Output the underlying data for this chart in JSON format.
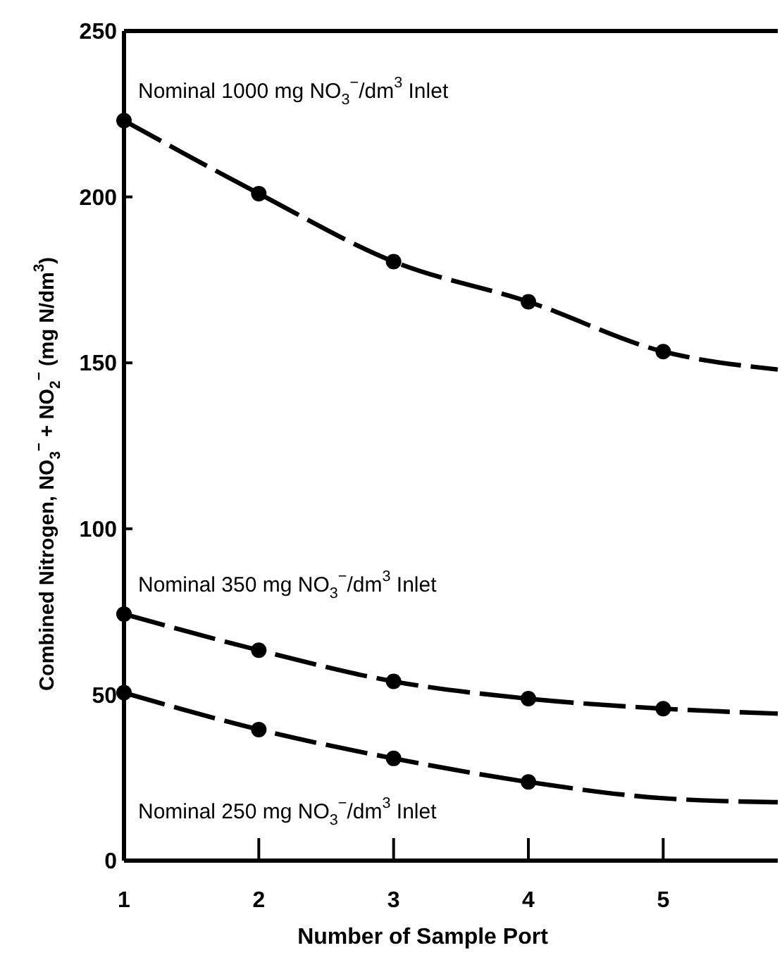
{
  "chart_data": {
    "type": "line",
    "xlabel": "Number of Sample Port",
    "ylabel": "Combined Nitrogen, NO$_{3}$$^{−}$ + NO$_{2}$$^{−}$ (mg N/dm$^{3}$)",
    "xlim": [
      1,
      5.85
    ],
    "xticks": [
      1,
      2,
      3,
      4,
      5
    ],
    "ylim": [
      0,
      250
    ],
    "yticks": [
      0,
      50,
      100,
      150,
      200,
      250
    ],
    "grid": false,
    "series": [
      {
        "name": "Nominal 1000 mg NO$_{3}$$^{−}$/dm$^{3}$ Inlet",
        "type": "line",
        "color": "#000000",
        "marker": "none",
        "line_style": "dashed",
        "x": [
          1,
          2,
          3,
          4,
          5,
          5.85
        ],
        "values": [
          223,
          201,
          180.5,
          168.4,
          153.4,
          148
        ]
      },
      {
        "name": "Nominal 350 mg NO$_{3}$$^{−}$/dm$^{3}$ Inlet",
        "type": "line",
        "color": "#000000",
        "marker": "none",
        "line_style": "dashed",
        "x": [
          1,
          2,
          3,
          4,
          5,
          5.85
        ],
        "values": [
          74.3,
          63.4,
          54,
          48.8,
          45.8,
          44.3
        ]
      },
      {
        "name": "Nominal 250 mg NO$_{3}$$^{−}$/dm$^{3}$ Inlet",
        "type": "line",
        "color": "#000000",
        "marker": "none",
        "line_style": "dashed",
        "x": [
          1,
          2,
          3,
          4,
          5,
          5.85
        ],
        "values": [
          50.6,
          39.5,
          30.8,
          23.7,
          18.8,
          17.6
        ]
      },
      {
        "type": "scatter",
        "color": "#000000",
        "marker": "circle",
        "x": [
          1,
          2,
          3,
          4,
          5
        ],
        "values": [
          223,
          201,
          180.5,
          168.4,
          153.4
        ]
      },
      {
        "type": "scatter",
        "color": "#000000",
        "marker": "circle",
        "x": [
          1,
          2,
          3,
          4,
          5
        ],
        "values": [
          74.3,
          63.4,
          54,
          48.8,
          45.8
        ]
      },
      {
        "type": "scatter",
        "color": "#000000",
        "marker": "circle",
        "x": [
          1,
          2,
          3,
          4
        ],
        "values": [
          50.6,
          39.5,
          30.8,
          23.7
        ]
      }
    ]
  }
}
